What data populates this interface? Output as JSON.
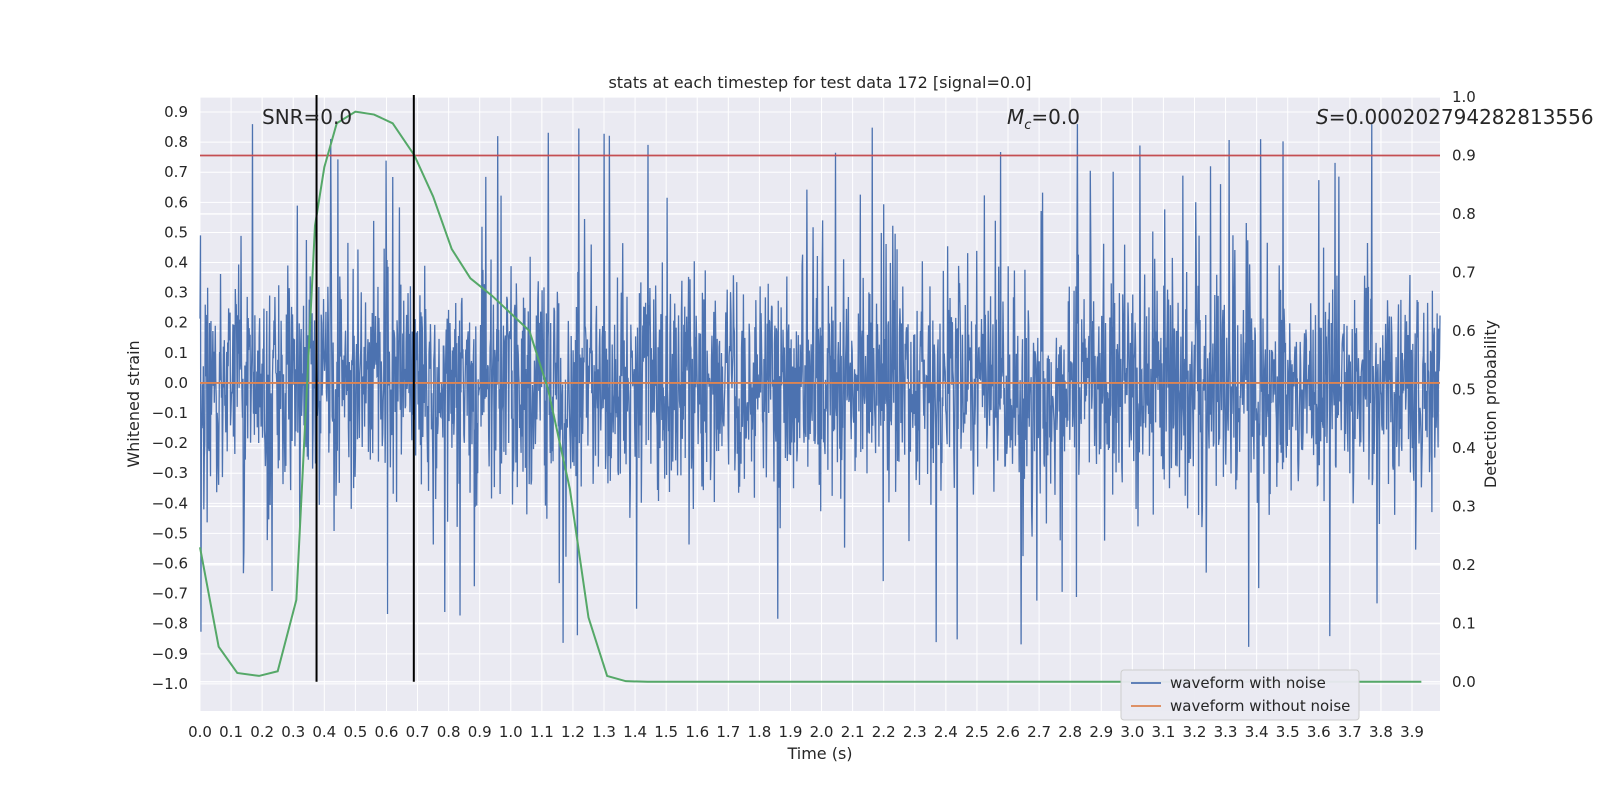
{
  "chart_data": {
    "type": "line",
    "title": "stats at each timestep for test data 172 [signal=0.0]",
    "xlabel": "Time (s)",
    "ylabel": "Whitened strain",
    "ylabel_right": "Detection probability",
    "xlim": [
      0.0,
      3.99
    ],
    "ylim": [
      -1.09,
      0.95
    ],
    "ylim_right": [
      -0.05,
      1.0
    ],
    "x_ticks": [
      "0.0",
      "0.1",
      "0.2",
      "0.3",
      "0.4",
      "0.5",
      "0.6",
      "0.7",
      "0.8",
      "0.9",
      "1.0",
      "1.1",
      "1.2",
      "1.3",
      "1.4",
      "1.5",
      "1.6",
      "1.7",
      "1.8",
      "1.9",
      "2.0",
      "2.1",
      "2.2",
      "2.3",
      "2.4",
      "2.5",
      "2.6",
      "2.7",
      "2.8",
      "2.9",
      "3.0",
      "3.1",
      "3.2",
      "3.3",
      "3.4",
      "3.5",
      "3.6",
      "3.7",
      "3.8",
      "3.9"
    ],
    "y_ticks": [
      "0.9",
      "0.8",
      "0.7",
      "0.6",
      "0.5",
      "0.4",
      "0.3",
      "0.2",
      "0.1",
      "0.0",
      "−0.1",
      "−0.2",
      "−0.3",
      "−0.4",
      "−0.5",
      "−0.6",
      "−0.7",
      "−0.8",
      "−0.9",
      "−1.0"
    ],
    "y_ticks_right": [
      "1.0",
      "0.9",
      "0.8",
      "0.7",
      "0.6",
      "0.5",
      "0.4",
      "0.3",
      "0.2",
      "0.1",
      "0.0"
    ],
    "grid": true,
    "legend_placement": "lower-right",
    "annotations": {
      "snr": "SNR=0.0",
      "mc_symbol": "M",
      "mc_sub": "c",
      "mc_value": "=0.0",
      "s_symbol": "S",
      "s_value": "=0.00020279428281355​6"
    },
    "series": [
      {
        "name": "waveform with noise",
        "color": "#4c72b0",
        "note_values": "dense whitened noise, roughly uniform amplitude ~0.3 with spikes to ~0.85 and dips to ~-1.0"
      },
      {
        "name": "waveform without noise",
        "color": "#dd8452",
        "x": [
          0.0,
          3.99
        ],
        "y": [
          0.0,
          0.0
        ]
      },
      {
        "color": "#55a868",
        "axis": "right",
        "x": [
          0.0,
          0.06,
          0.12,
          0.19,
          0.25,
          0.31,
          0.37,
          0.4,
          0.44,
          0.5,
          0.56,
          0.62,
          0.69,
          0.75,
          0.81,
          0.87,
          0.94,
          1.0,
          1.06,
          1.12,
          1.19,
          1.25,
          1.31,
          1.37,
          1.44,
          1.5,
          1.56,
          1.62,
          1.69,
          1.75,
          1.81,
          1.87,
          1.94,
          2.0,
          2.06,
          2.12,
          2.19,
          2.25,
          2.31,
          2.37,
          2.44,
          2.5,
          2.56,
          2.62,
          2.69,
          2.75,
          2.81,
          2.87,
          2.94,
          3.0,
          3.06,
          3.12,
          3.19,
          3.25,
          3.31,
          3.37,
          3.44,
          3.5,
          3.56,
          3.62,
          3.69,
          3.75,
          3.81,
          3.87,
          3.93
        ],
        "y": [
          0.23,
          0.06,
          0.015,
          0.01,
          0.018,
          0.14,
          0.78,
          0.88,
          0.955,
          0.975,
          0.97,
          0.955,
          0.9,
          0.83,
          0.74,
          0.69,
          0.66,
          0.63,
          0.6,
          0.5,
          0.33,
          0.11,
          0.01,
          0.001,
          0.0,
          0.0,
          0.0,
          0.0,
          0.0,
          0.0,
          0.0,
          0.0,
          0.0,
          0.0,
          0.0,
          0.0,
          0.0,
          0.0,
          0.0,
          0.0,
          0.0,
          0.0,
          0.0,
          0.0,
          0.0,
          0.0,
          0.0,
          0.0,
          0.0,
          0.0,
          0.0,
          0.0,
          0.0,
          0.0,
          0.0,
          0.0,
          0.0,
          0.0,
          0.0,
          0.0,
          0.0,
          0.0,
          0.0,
          0.0,
          0.0
        ]
      }
    ],
    "threshold": {
      "color": "#c44e52",
      "axis": "right",
      "value": 0.9
    },
    "vertical_markers": {
      "color": "#000000",
      "x": [
        0.375,
        0.688
      ]
    }
  },
  "colors": {
    "plot_bg": "#eaeaf2",
    "grid": "#ffffff"
  }
}
